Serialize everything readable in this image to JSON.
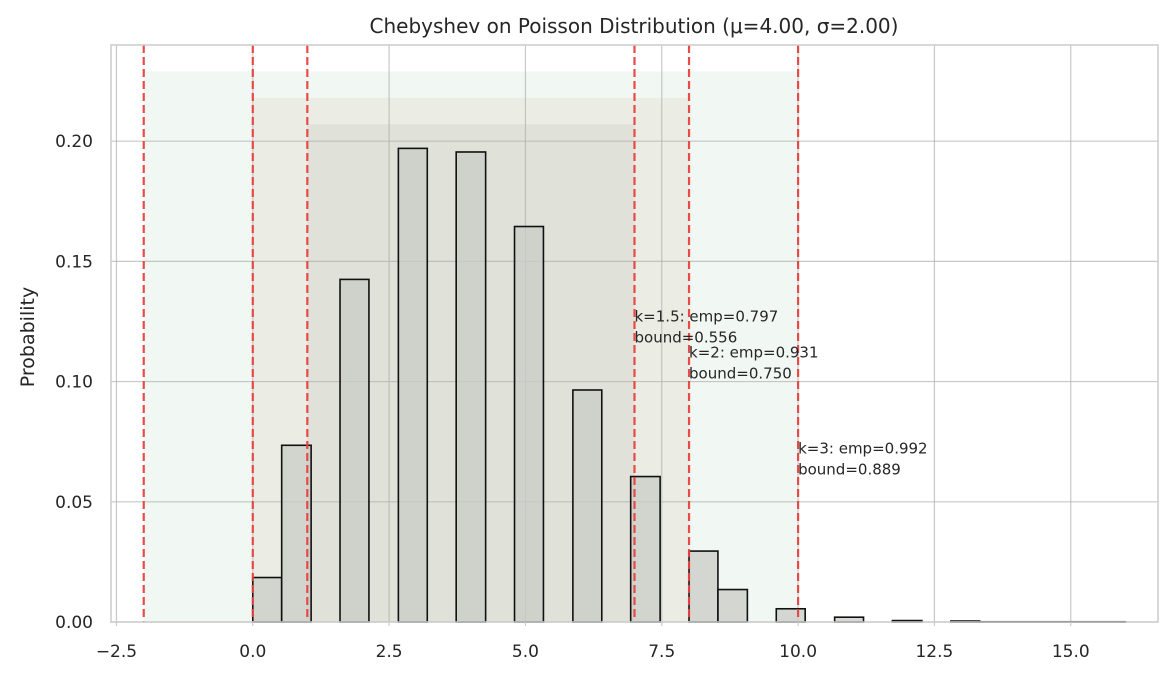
{
  "chart_data": {
    "type": "bar",
    "title": "Chebyshev on Poisson Distribution (μ=4.00, σ=2.00)",
    "xlabel": "",
    "ylabel": "Probability",
    "xlim": [
      -2.6,
      16.6
    ],
    "ylim": [
      0,
      0.24
    ],
    "x_ticks": [
      -2.5,
      0.0,
      2.5,
      5.0,
      7.5,
      10.0,
      12.5,
      15.0
    ],
    "x_tick_labels": [
      "−2.5",
      "0.0",
      "2.5",
      "5.0",
      "7.5",
      "10.0",
      "12.5",
      "15.0"
    ],
    "y_ticks": [
      0.0,
      0.05,
      0.1,
      0.15,
      0.2
    ],
    "y_tick_labels": [
      "0.00",
      "0.05",
      "0.10",
      "0.15",
      "0.20"
    ],
    "grid": true,
    "bar_color": "#c9ccc6",
    "bar_edge_color": "#111111",
    "bars": [
      {
        "x0": 0.0,
        "x1": 0.53,
        "value": 0.0185
      },
      {
        "x0": 0.53,
        "x1": 1.07,
        "value": 0.0735
      },
      {
        "x0": 1.6,
        "x1": 2.13,
        "value": 0.1425
      },
      {
        "x0": 2.67,
        "x1": 3.2,
        "value": 0.197
      },
      {
        "x0": 3.73,
        "x1": 4.27,
        "value": 0.1955
      },
      {
        "x0": 4.8,
        "x1": 5.33,
        "value": 0.1645
      },
      {
        "x0": 5.87,
        "x1": 6.4,
        "value": 0.0965
      },
      {
        "x0": 6.93,
        "x1": 7.47,
        "value": 0.0605
      },
      {
        "x0": 8.0,
        "x1": 8.53,
        "value": 0.0295
      },
      {
        "x0": 8.53,
        "x1": 9.07,
        "value": 0.0135
      },
      {
        "x0": 9.6,
        "x1": 10.13,
        "value": 0.0055
      },
      {
        "x0": 10.67,
        "x1": 11.2,
        "value": 0.002
      },
      {
        "x0": 11.73,
        "x1": 12.27,
        "value": 0.0006
      },
      {
        "x0": 12.8,
        "x1": 13.33,
        "value": 0.0004
      },
      {
        "x0": 13.33,
        "x1": 16.0,
        "value": 0.0001
      }
    ],
    "shaded_regions": [
      {
        "k": 3,
        "x0": -2.0,
        "x1": 10.0,
        "top": 0.229,
        "color": "#cfe3d4"
      },
      {
        "k": 2,
        "x0": 0.0,
        "x1": 8.0,
        "top": 0.218,
        "color": "#ddd7c2"
      },
      {
        "k": 1.5,
        "x0": 1.0,
        "x1": 7.0,
        "top": 0.207,
        "color": "#c6c8c1"
      }
    ],
    "vlines": [
      -2.0,
      0.0,
      1.0,
      7.0,
      8.0,
      10.0
    ],
    "vline_color": "#e8413e",
    "annotations": [
      {
        "x": 7.0,
        "y": 0.125,
        "lines": [
          "k=1.5: emp=0.797",
          "bound=0.556"
        ]
      },
      {
        "x": 8.0,
        "y": 0.11,
        "lines": [
          "k=2: emp=0.931",
          "bound=0.750"
        ]
      },
      {
        "x": 10.0,
        "y": 0.07,
        "lines": [
          "k=3: emp=0.992",
          "bound=0.889"
        ]
      }
    ]
  }
}
